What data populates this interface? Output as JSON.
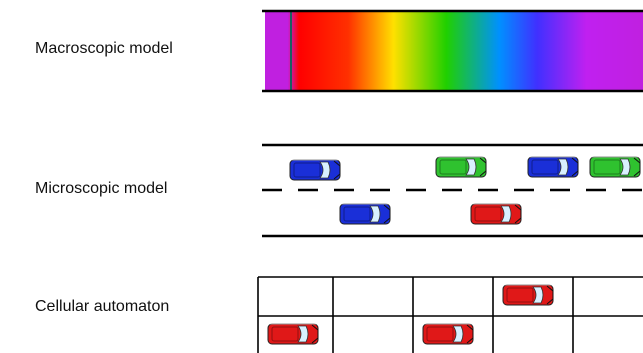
{
  "labels": {
    "macroscopic": "Macroscopic model",
    "microscopic": "Microscopic model",
    "cellular": "Cellular automaton"
  },
  "colors": {
    "car_blue": "#1a2fd8",
    "car_green": "#2fc22f",
    "car_red": "#e01818",
    "line": "#000000",
    "gradient": [
      "#c020e0",
      "#ff0000",
      "#ff8000",
      "#ffff00",
      "#00d000",
      "#0070ff",
      "#c020e0"
    ]
  },
  "micro_cars": [
    {
      "lane": "top",
      "color": "blue"
    },
    {
      "lane": "top",
      "color": "green"
    },
    {
      "lane": "top",
      "color": "blue"
    },
    {
      "lane": "top",
      "color": "green"
    },
    {
      "lane": "bottom",
      "color": "blue"
    },
    {
      "lane": "bottom",
      "color": "red"
    }
  ],
  "ca_cars": [
    {
      "row": 0,
      "col": 3,
      "color": "red"
    },
    {
      "row": 1,
      "col": 0,
      "color": "red"
    },
    {
      "row": 1,
      "col": 2,
      "color": "red"
    }
  ],
  "icons": [
    "car-icon"
  ]
}
